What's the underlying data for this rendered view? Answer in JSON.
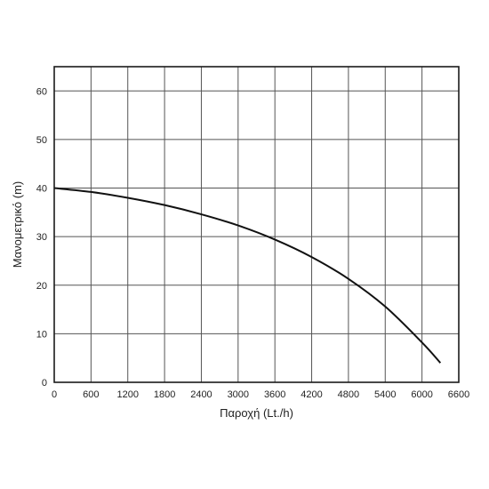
{
  "chart_data": {
    "type": "line",
    "title": "",
    "xlabel": "Παροχή (Lt./h)",
    "ylabel": "Μανομετρικό  (m)",
    "xlim": [
      0,
      6600
    ],
    "ylim": [
      0,
      65
    ],
    "x_ticks": [
      "0",
      "600",
      "1200",
      "1800",
      "2400",
      "3000",
      "3600",
      "4200",
      "4800",
      "5400",
      "6000",
      "6600"
    ],
    "y_ticks": [
      "0",
      "10",
      "20",
      "30",
      "40",
      "50",
      "60"
    ],
    "grid": true,
    "series": [
      {
        "color": "#111111",
        "x": [
          0,
          600,
          1200,
          1800,
          2400,
          3000,
          3600,
          4200,
          4800,
          5400,
          6000,
          6300
        ],
        "y": [
          40,
          39.2,
          38,
          36.5,
          34.6,
          32.3,
          29.4,
          25.8,
          21.3,
          15.6,
          8.2,
          4
        ]
      }
    ]
  }
}
